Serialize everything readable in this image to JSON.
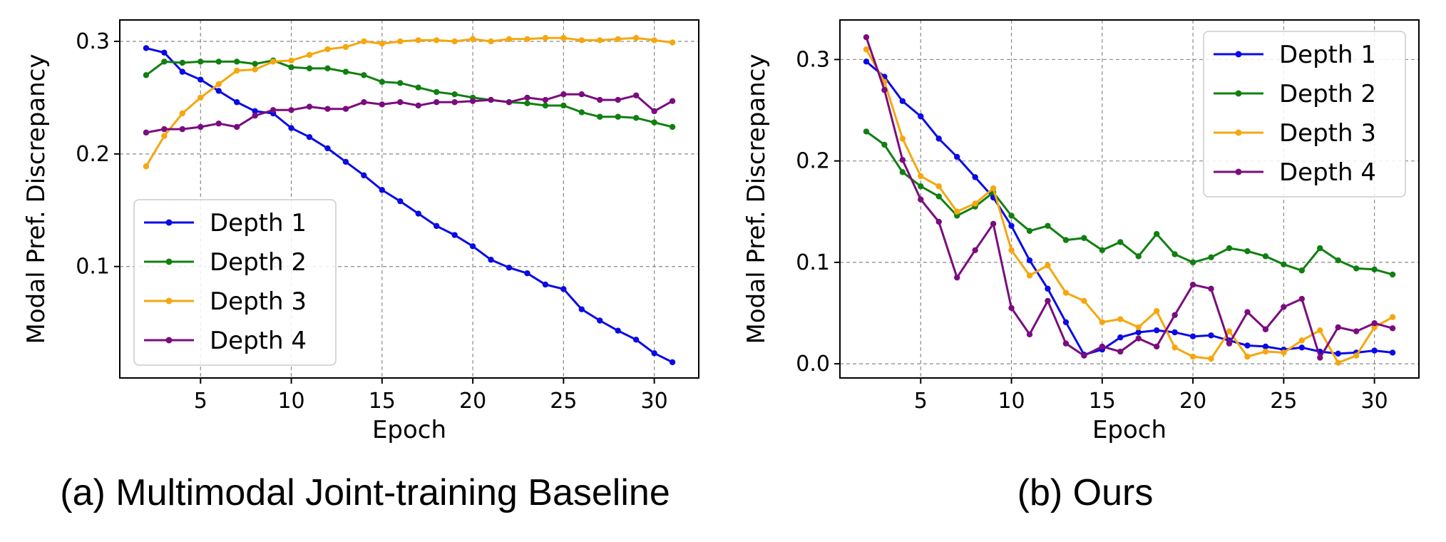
{
  "charts": [
    {
      "id": "panel-a",
      "caption": "(a) Multimodal Joint-training Baseline",
      "chart_data": {
        "type": "line",
        "title": "",
        "xlabel": "Epoch",
        "ylabel": "Modal Pref. Discrepancy",
        "xlim": [
          0.55,
          32.45
        ],
        "ylim": [
          0.001,
          0.319
        ],
        "xticks": [
          5,
          10,
          15,
          20,
          25,
          30
        ],
        "yticks": [
          0.1,
          0.2,
          0.3
        ],
        "ytick_labels": [
          "0.1",
          "0.2",
          "0.3"
        ],
        "grid": true,
        "legend_position": "lower-left",
        "x": [
          2,
          3,
          4,
          5,
          6,
          7,
          8,
          9,
          10,
          11,
          12,
          13,
          14,
          15,
          16,
          17,
          18,
          19,
          20,
          21,
          22,
          23,
          24,
          25,
          26,
          27,
          28,
          29,
          30,
          31
        ],
        "series": [
          {
            "name": "Depth 1",
            "color": "#0a0ae6",
            "values": [
              0.294,
              0.29,
              0.273,
              0.266,
              0.256,
              0.246,
              0.238,
              0.236,
              0.223,
              0.215,
              0.205,
              0.193,
              0.181,
              0.168,
              0.158,
              0.147,
              0.136,
              0.128,
              0.118,
              0.106,
              0.099,
              0.094,
              0.084,
              0.08,
              0.062,
              0.052,
              0.043,
              0.035,
              0.023,
              0.015
            ]
          },
          {
            "name": "Depth 2",
            "color": "#108010",
            "values": [
              0.27,
              0.282,
              0.281,
              0.282,
              0.282,
              0.282,
              0.28,
              0.283,
              0.277,
              0.276,
              0.276,
              0.273,
              0.27,
              0.264,
              0.263,
              0.259,
              0.255,
              0.253,
              0.25,
              0.248,
              0.246,
              0.245,
              0.243,
              0.243,
              0.237,
              0.233,
              0.233,
              0.232,
              0.228,
              0.224
            ]
          },
          {
            "name": "Depth 3",
            "color": "#f5a70f",
            "values": [
              0.189,
              0.216,
              0.236,
              0.25,
              0.262,
              0.274,
              0.275,
              0.282,
              0.283,
              0.288,
              0.293,
              0.295,
              0.3,
              0.298,
              0.3,
              0.301,
              0.301,
              0.3,
              0.302,
              0.3,
              0.302,
              0.302,
              0.303,
              0.303,
              0.301,
              0.301,
              0.302,
              0.303,
              0.301,
              0.299
            ]
          },
          {
            "name": "Depth 4",
            "color": "#7b0c7e",
            "values": [
              0.219,
              0.222,
              0.222,
              0.224,
              0.227,
              0.224,
              0.234,
              0.239,
              0.239,
              0.242,
              0.24,
              0.24,
              0.246,
              0.244,
              0.246,
              0.243,
              0.246,
              0.246,
              0.247,
              0.248,
              0.246,
              0.25,
              0.248,
              0.253,
              0.253,
              0.248,
              0.248,
              0.252,
              0.238,
              0.247
            ]
          }
        ]
      }
    },
    {
      "id": "panel-b",
      "caption": "(b) Ours",
      "chart_data": {
        "type": "line",
        "title": "",
        "xlabel": "Epoch",
        "ylabel": "Modal Pref. Discrepancy",
        "xlim": [
          0.55,
          32.45
        ],
        "ylim": [
          -0.014,
          0.339
        ],
        "xticks": [
          5,
          10,
          15,
          20,
          25,
          30
        ],
        "yticks": [
          0.0,
          0.1,
          0.2,
          0.3
        ],
        "ytick_labels": [
          "0.0",
          "0.1",
          "0.2",
          "0.3"
        ],
        "grid": true,
        "legend_position": "upper-right",
        "x": [
          2,
          3,
          4,
          5,
          6,
          7,
          8,
          9,
          10,
          11,
          12,
          13,
          14,
          15,
          16,
          17,
          18,
          19,
          20,
          21,
          22,
          23,
          24,
          25,
          26,
          27,
          28,
          29,
          30,
          31
        ],
        "series": [
          {
            "name": "Depth 1",
            "color": "#0a0ae6",
            "values": [
              0.298,
              0.283,
              0.259,
              0.244,
              0.222,
              0.204,
              0.184,
              0.164,
              0.136,
              0.102,
              0.074,
              0.041,
              0.009,
              0.014,
              0.026,
              0.031,
              0.033,
              0.031,
              0.027,
              0.028,
              0.023,
              0.018,
              0.017,
              0.014,
              0.016,
              0.012,
              0.01,
              0.011,
              0.013,
              0.011
            ]
          },
          {
            "name": "Depth 2",
            "color": "#108010",
            "values": [
              0.229,
              0.216,
              0.189,
              0.175,
              0.165,
              0.146,
              0.155,
              0.169,
              0.146,
              0.131,
              0.136,
              0.122,
              0.124,
              0.112,
              0.12,
              0.106,
              0.128,
              0.108,
              0.1,
              0.105,
              0.114,
              0.111,
              0.106,
              0.098,
              0.092,
              0.114,
              0.102,
              0.094,
              0.093,
              0.088
            ]
          },
          {
            "name": "Depth 3",
            "color": "#f5a70f",
            "values": [
              0.31,
              0.278,
              0.222,
              0.185,
              0.175,
              0.15,
              0.158,
              0.173,
              0.112,
              0.087,
              0.097,
              0.07,
              0.062,
              0.041,
              0.044,
              0.036,
              0.052,
              0.016,
              0.007,
              0.005,
              0.032,
              0.007,
              0.012,
              0.011,
              0.023,
              0.033,
              0.001,
              0.008,
              0.036,
              0.046
            ]
          },
          {
            "name": "Depth 4",
            "color": "#7b0c7e",
            "values": [
              0.322,
              0.27,
              0.201,
              0.162,
              0.14,
              0.085,
              0.112,
              0.138,
              0.055,
              0.029,
              0.062,
              0.02,
              0.008,
              0.017,
              0.012,
              0.025,
              0.017,
              0.048,
              0.078,
              0.074,
              0.02,
              0.051,
              0.034,
              0.056,
              0.064,
              0.006,
              0.036,
              0.032,
              0.04,
              0.035
            ]
          }
        ]
      }
    }
  ]
}
